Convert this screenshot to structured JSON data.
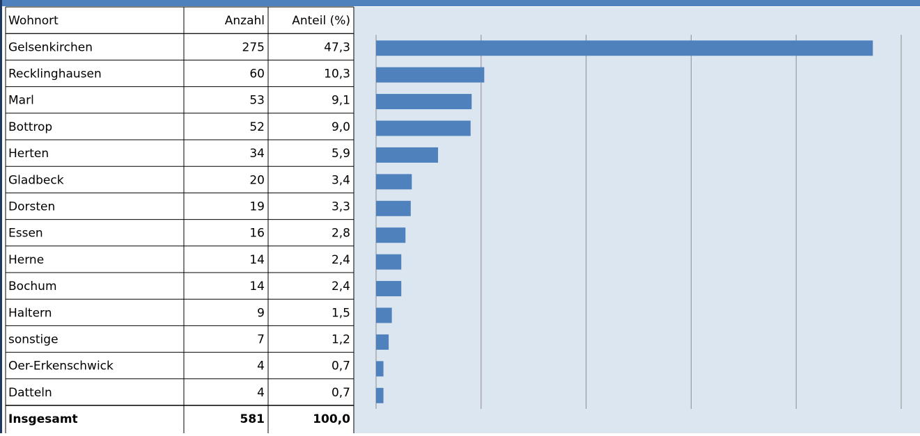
{
  "table": {
    "header": [
      "Wohnort",
      "Anzahl",
      "Anteil (%)"
    ],
    "rows": [
      [
        "Gelsenkirchen",
        "275",
        "47,3"
      ],
      [
        "Recklinghausen",
        "60",
        "10,3"
      ],
      [
        "Marl",
        "53",
        "9,1"
      ],
      [
        "Bottrop",
        "52",
        "9,0"
      ],
      [
        "Herten",
        "34",
        "5,9"
      ],
      [
        "Gladbeck",
        "20",
        "3,4"
      ],
      [
        "Dorsten",
        "19",
        "3,3"
      ],
      [
        "Essen",
        "16",
        "2,8"
      ],
      [
        "Herne",
        "14",
        "2,4"
      ],
      [
        "Bochum",
        "14",
        "2,4"
      ],
      [
        "Haltern",
        "9",
        "1,5"
      ],
      [
        "sonstige",
        "7",
        "1,2"
      ],
      [
        "Oer-Erkenschwick",
        "4",
        "0,7"
      ],
      [
        "Datteln",
        "4",
        "0,7"
      ]
    ],
    "total": [
      "Insgesamt",
      "581",
      "100,0"
    ]
  },
  "chart_data": {
    "type": "hbar",
    "orientation": "horizontal",
    "color": "#4f81bd",
    "values": [
      47.3,
      10.3,
      9.1,
      9.0,
      5.9,
      3.4,
      3.3,
      2.8,
      2.4,
      2.4,
      1.5,
      1.2,
      0.7,
      0.7
    ],
    "xlim": [
      0,
      50
    ],
    "xticks": [
      0,
      10,
      20,
      30,
      40,
      50
    ],
    "grid": true
  }
}
